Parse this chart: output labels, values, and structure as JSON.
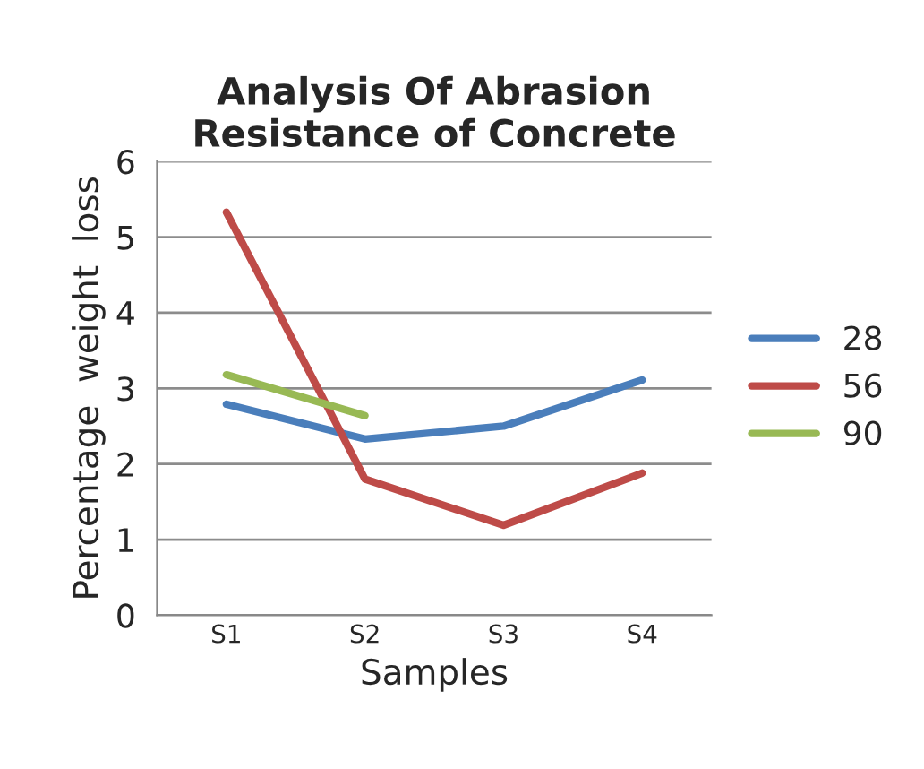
{
  "chart_data": {
    "type": "line",
    "title": "Analysis Of Abrasion\nResistance of Concrete",
    "xlabel": "Samples",
    "ylabel": "Percentage  weight  loss",
    "categories": [
      "S1",
      "S2",
      "S3",
      "S4"
    ],
    "series": [
      {
        "name": "28",
        "color": "#4a7ebb",
        "values": [
          2.79,
          2.33,
          2.5,
          3.11
        ]
      },
      {
        "name": "56",
        "color": "#be4b48",
        "values": [
          5.33,
          1.8,
          1.19,
          1.88
        ]
      },
      {
        "name": "90",
        "color": "#98b954",
        "values": [
          3.18,
          2.64,
          null,
          null
        ]
      }
    ],
    "ylim": [
      0,
      6
    ],
    "yticks": [
      0,
      1,
      2,
      3,
      4,
      5,
      6
    ],
    "grid": "y",
    "legend": "right",
    "marker": "none",
    "line_style": "solid"
  }
}
